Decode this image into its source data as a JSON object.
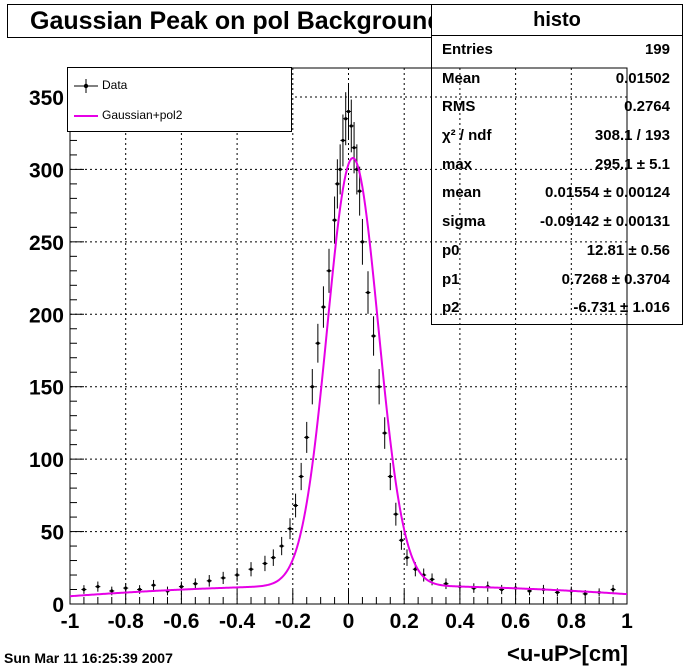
{
  "title": "Gaussian Peak on pol Background",
  "footer": "Sun Mar 11 16:25:39 2007",
  "stats": {
    "name": "histo",
    "rows": [
      {
        "label": "Entries",
        "value": "199"
      },
      {
        "label": "Mean",
        "value": "0.01502"
      },
      {
        "label": "RMS",
        "value": "0.2764"
      },
      {
        "label": "χ² / ndf",
        "value": "308.1 / 193"
      },
      {
        "label": "max",
        "value": "295.1 ± 5.1"
      },
      {
        "label": "mean",
        "value": "0.01554 ± 0.00124"
      },
      {
        "label": "sigma",
        "value": "-0.09142 ± 0.00131"
      },
      {
        "label": "p0",
        "value": "12.81 ± 0.56"
      },
      {
        "label": "p1",
        "value": "0.7268 ± 0.3704"
      },
      {
        "label": "p2",
        "value": "-6.731 ± 1.016"
      }
    ]
  },
  "legend": [
    {
      "name": "Data",
      "color": "#000000"
    },
    {
      "name": "Gaussian+pol2",
      "color": "#e600e6"
    }
  ],
  "chart_data": {
    "type": "scatter",
    "title": "Gaussian Peak on pol Background",
    "xlabel": "<u-uP>[cm]",
    "ylabel": "",
    "xlim": [
      -1,
      1
    ],
    "ylim": [
      0,
      370
    ],
    "xticks": [
      -1,
      -0.8,
      -0.6,
      -0.4,
      -0.2,
      0,
      0.2,
      0.4,
      0.6,
      0.8,
      1
    ],
    "xtick_labels": [
      "-1",
      "-0.8",
      "-0.6",
      "-0.4",
      "-0.2",
      "0",
      "0.2",
      "0.4",
      "0.6",
      "0.8",
      "1"
    ],
    "yticks": [
      0,
      50,
      100,
      150,
      200,
      250,
      300,
      350
    ],
    "ytick_labels": [
      "0",
      "50",
      "100",
      "150",
      "200",
      "250",
      "300",
      "350"
    ],
    "grid": true,
    "legend_position": "top-left",
    "fit": {
      "name": "Gaussian+pol2",
      "model": "gaus+pol2",
      "params": {
        "max": 295.1,
        "mean": 0.01554,
        "sigma": -0.09142,
        "p0": 12.81,
        "p1": 0.7268,
        "p2": -6.731
      },
      "color": "#e600e6"
    },
    "data_series": {
      "name": "Data",
      "color": "#000000",
      "x": [
        -0.95,
        -0.9,
        -0.85,
        -0.8,
        -0.75,
        -0.7,
        -0.65,
        -0.6,
        -0.55,
        -0.5,
        -0.45,
        -0.4,
        -0.35,
        -0.3,
        -0.27,
        -0.24,
        -0.21,
        -0.19,
        -0.17,
        -0.15,
        -0.13,
        -0.11,
        -0.09,
        -0.07,
        -0.05,
        -0.04,
        -0.03,
        -0.02,
        -0.01,
        0,
        0.01,
        0.02,
        0.03,
        0.04,
        0.05,
        0.07,
        0.09,
        0.11,
        0.13,
        0.15,
        0.17,
        0.19,
        0.21,
        0.24,
        0.27,
        0.3,
        0.35,
        0.4,
        0.45,
        0.5,
        0.55,
        0.6,
        0.65,
        0.7,
        0.75,
        0.8,
        0.85,
        0.9,
        0.95
      ],
      "y": [
        10,
        12,
        9,
        11,
        10,
        13,
        9,
        12,
        14,
        16,
        18,
        20,
        24,
        28,
        32,
        40,
        52,
        68,
        88,
        115,
        150,
        180,
        205,
        230,
        265,
        290,
        300,
        320,
        335,
        340,
        330,
        315,
        300,
        285,
        250,
        215,
        185,
        150,
        118,
        88,
        62,
        44,
        32,
        24,
        20,
        17,
        14,
        12,
        11,
        12,
        10,
        11,
        9,
        10,
        8,
        9,
        7,
        8,
        10
      ],
      "err": [
        3,
        3.5,
        3,
        3.3,
        3,
        3.6,
        3,
        3.5,
        3.7,
        4,
        4.2,
        4.5,
        4.9,
        5.3,
        5.7,
        6.3,
        7.2,
        8.2,
        9.4,
        10.7,
        12.2,
        13.4,
        14.3,
        15.2,
        16.3,
        17,
        17.3,
        17.9,
        18.3,
        18.4,
        18.2,
        17.7,
        17.3,
        16.9,
        15.8,
        14.7,
        13.6,
        12.2,
        10.9,
        9.4,
        7.9,
        6.6,
        5.7,
        4.9,
        4.5,
        4.1,
        3.7,
        3.5,
        3.3,
        3.5,
        3.2,
        3.3,
        3,
        3.2,
        2.8,
        3,
        2.6,
        2.8,
        3.2
      ]
    }
  }
}
